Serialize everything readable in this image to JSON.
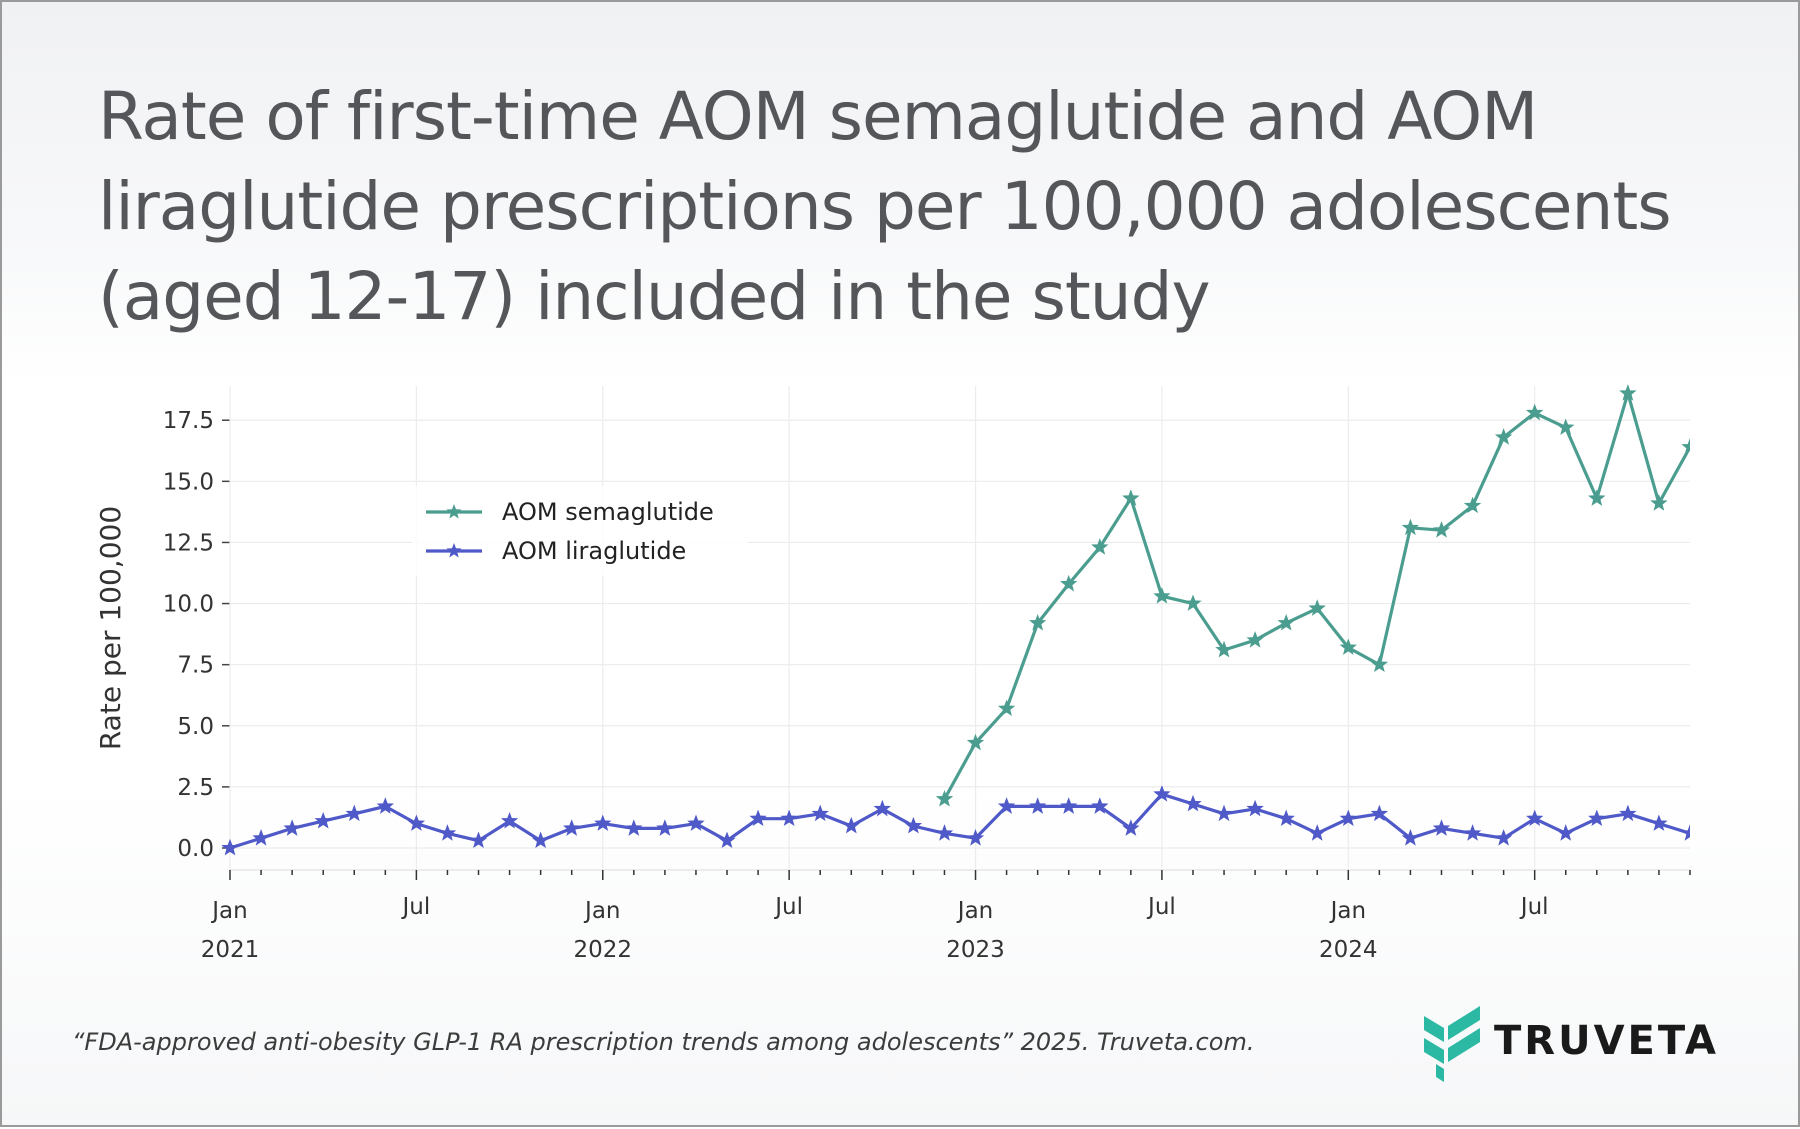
{
  "title": "Rate of first-time AOM semaglutide and AOM liraglutide prescriptions per 100,000 adolescents (aged 12-17) included in the study",
  "citation": "“FDA-approved anti-obesity GLP-1 RA prescription trends among adolescents” 2025. Truveta.com.",
  "brand": {
    "name": "TRUVETA",
    "logo_icon": "truveta-chevron-logo",
    "logo_color": "#2bb9a4"
  },
  "chart_data": {
    "type": "line",
    "xlabel": "",
    "ylabel": "Rate per 100,000",
    "x_start": "2021-01",
    "x_end": "2024-12",
    "ylim": [
      -0.9,
      18.9
    ],
    "y_ticks": [
      "0.0",
      "2.5",
      "5.0",
      "7.5",
      "10.0",
      "12.5",
      "15.0",
      "17.5"
    ],
    "y_tick_values": [
      0,
      2.5,
      5,
      7.5,
      10,
      12.5,
      15,
      17.5
    ],
    "x_ticks": [
      {
        "date": "2021-01",
        "month": "Jan",
        "year": "2021"
      },
      {
        "date": "2021-07",
        "month": "Jul",
        "year": ""
      },
      {
        "date": "2022-01",
        "month": "Jan",
        "year": "2022"
      },
      {
        "date": "2022-07",
        "month": "Jul",
        "year": ""
      },
      {
        "date": "2023-01",
        "month": "Jan",
        "year": "2023"
      },
      {
        "date": "2023-07",
        "month": "Jul",
        "year": ""
      },
      {
        "date": "2024-01",
        "month": "Jan",
        "year": "2024"
      },
      {
        "date": "2024-07",
        "month": "Jul",
        "year": ""
      }
    ],
    "grid": true,
    "legend_position": "upper-left",
    "marker": "star",
    "series": [
      {
        "name": "AOM semaglutide",
        "color": "#4a9d8f",
        "x": [
          "2022-12",
          "2023-01",
          "2023-02",
          "2023-03",
          "2023-04",
          "2023-05",
          "2023-06",
          "2023-07",
          "2023-08",
          "2023-09",
          "2023-10",
          "2023-11",
          "2023-12",
          "2024-01",
          "2024-02",
          "2024-03",
          "2024-04",
          "2024-05",
          "2024-06",
          "2024-07",
          "2024-08",
          "2024-09",
          "2024-10",
          "2024-11",
          "2024-12"
        ],
        "values": [
          2.0,
          4.3,
          5.7,
          9.2,
          10.8,
          12.3,
          14.3,
          10.3,
          10.0,
          8.1,
          8.5,
          9.2,
          9.8,
          8.2,
          7.5,
          13.1,
          13.0,
          14.0,
          16.8,
          17.8,
          17.2,
          14.3,
          18.6,
          14.1,
          16.4
        ]
      },
      {
        "name": "AOM liraglutide",
        "color": "#4f59c8",
        "x": [
          "2021-01",
          "2021-02",
          "2021-03",
          "2021-04",
          "2021-05",
          "2021-06",
          "2021-07",
          "2021-08",
          "2021-09",
          "2021-10",
          "2021-11",
          "2021-12",
          "2022-01",
          "2022-02",
          "2022-03",
          "2022-04",
          "2022-05",
          "2022-06",
          "2022-07",
          "2022-08",
          "2022-09",
          "2022-10",
          "2022-11",
          "2022-12",
          "2023-01",
          "2023-02",
          "2023-03",
          "2023-04",
          "2023-05",
          "2023-06",
          "2023-07",
          "2023-08",
          "2023-09",
          "2023-10",
          "2023-11",
          "2023-12",
          "2024-01",
          "2024-02",
          "2024-03",
          "2024-04",
          "2024-05",
          "2024-06",
          "2024-07",
          "2024-08",
          "2024-09",
          "2024-10",
          "2024-11",
          "2024-12"
        ],
        "values": [
          0.0,
          0.4,
          0.8,
          1.1,
          1.4,
          1.7,
          1.0,
          0.6,
          0.3,
          1.1,
          0.3,
          0.8,
          1.0,
          0.8,
          0.8,
          1.0,
          0.3,
          1.2,
          1.2,
          1.4,
          0.9,
          1.6,
          0.9,
          0.6,
          0.4,
          1.7,
          1.7,
          1.7,
          1.7,
          0.8,
          2.2,
          1.8,
          1.4,
          1.6,
          1.2,
          0.6,
          1.2,
          1.4,
          0.4,
          0.8,
          0.6,
          0.4,
          1.2,
          0.6,
          1.2,
          1.4,
          1.0,
          0.6
        ]
      }
    ]
  }
}
